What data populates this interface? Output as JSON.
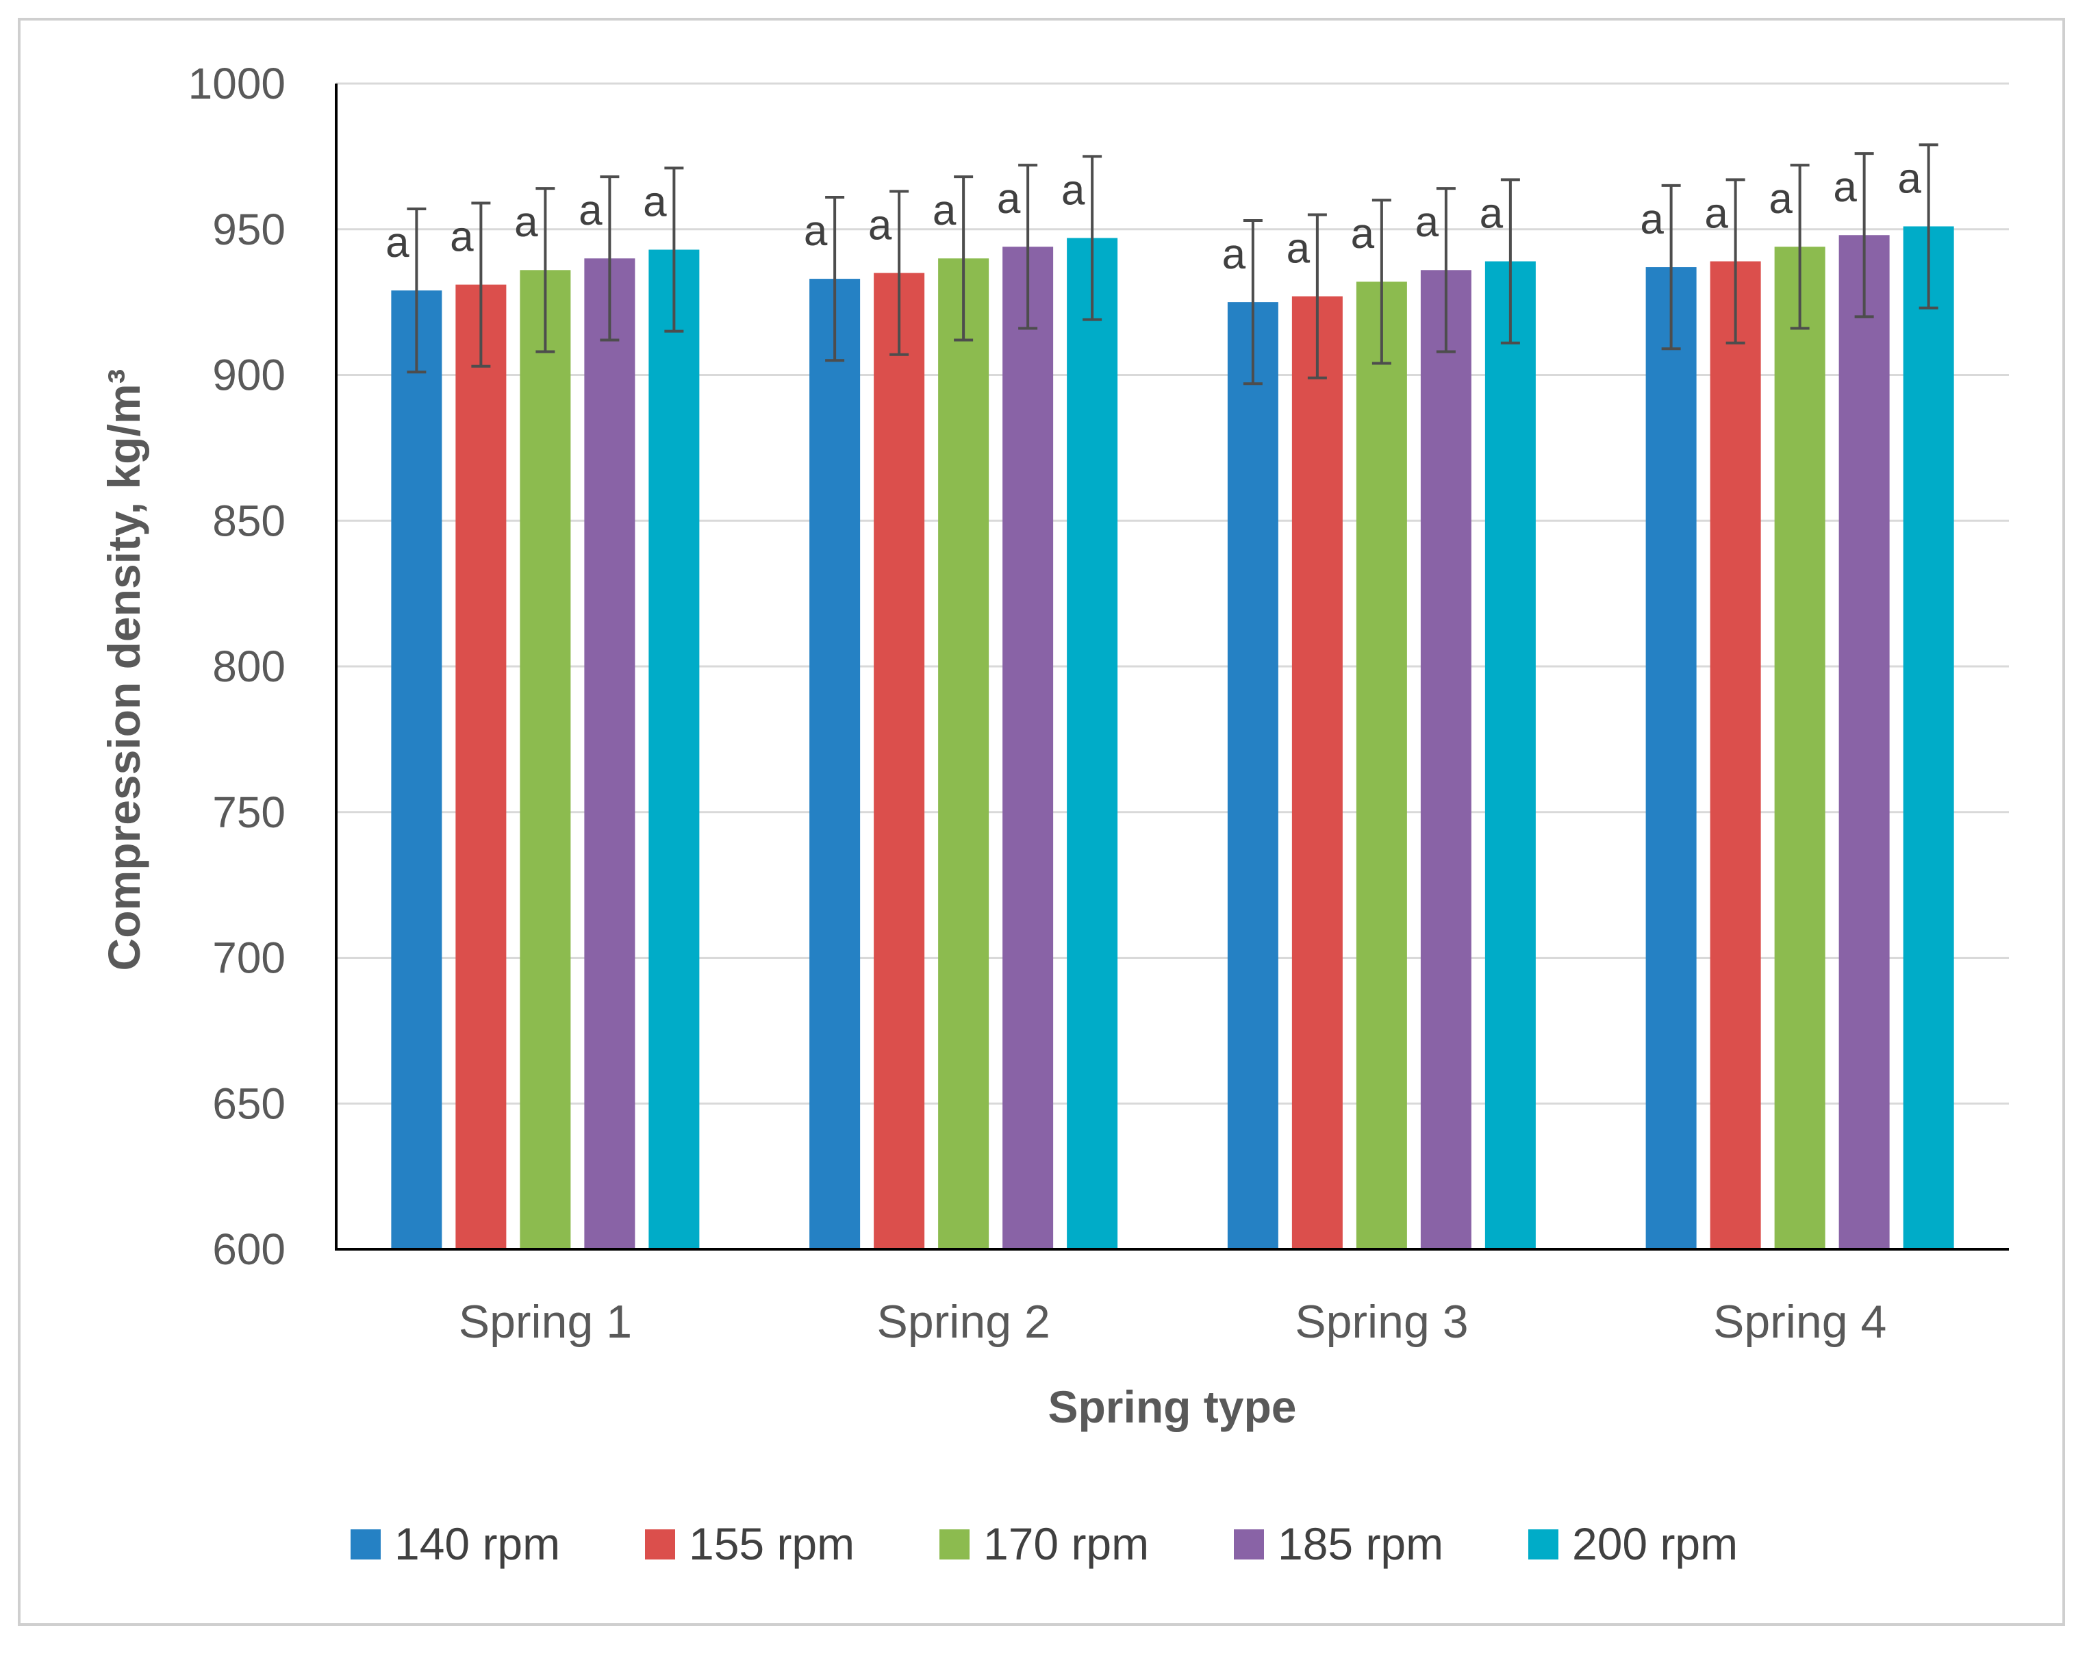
{
  "chart_data": {
    "type": "bar",
    "title": "",
    "xlabel": "Spring type",
    "ylabel": "Compression density, kg/m³",
    "ylim": [
      600,
      1000
    ],
    "yticks": [
      600,
      650,
      700,
      750,
      800,
      850,
      900,
      950,
      1000
    ],
    "grid": true,
    "legend_position": "bottom",
    "categories": [
      "Spring 1",
      "Spring 2",
      "Spring 3",
      "Spring 4"
    ],
    "series": [
      {
        "name": "140 rpm",
        "color": "#2581c4",
        "values": [
          929,
          933,
          925,
          937
        ],
        "errors": [
          28,
          28,
          28,
          28
        ],
        "labels": [
          "a",
          "a",
          "a",
          "a"
        ]
      },
      {
        "name": "155 rpm",
        "color": "#db4f4c",
        "values": [
          931,
          935,
          927,
          939
        ],
        "errors": [
          28,
          28,
          28,
          28
        ],
        "labels": [
          "a",
          "a",
          "a",
          "a"
        ]
      },
      {
        "name": "170 rpm",
        "color": "#8cbb4f",
        "values": [
          936,
          940,
          932,
          944
        ],
        "errors": [
          28,
          28,
          28,
          28
        ],
        "labels": [
          "a",
          "a",
          "a",
          "a"
        ]
      },
      {
        "name": "185 rpm",
        "color": "#8963a6",
        "values": [
          940,
          944,
          936,
          948
        ],
        "errors": [
          28,
          28,
          28,
          28
        ],
        "labels": [
          "a",
          "a",
          "a",
          "a"
        ]
      },
      {
        "name": "200 rpm",
        "color": "#00acc8",
        "values": [
          943,
          947,
          939,
          951
        ],
        "errors": [
          28,
          28,
          28,
          28
        ],
        "labels": [
          "a",
          "a",
          "a",
          "a"
        ]
      }
    ]
  }
}
